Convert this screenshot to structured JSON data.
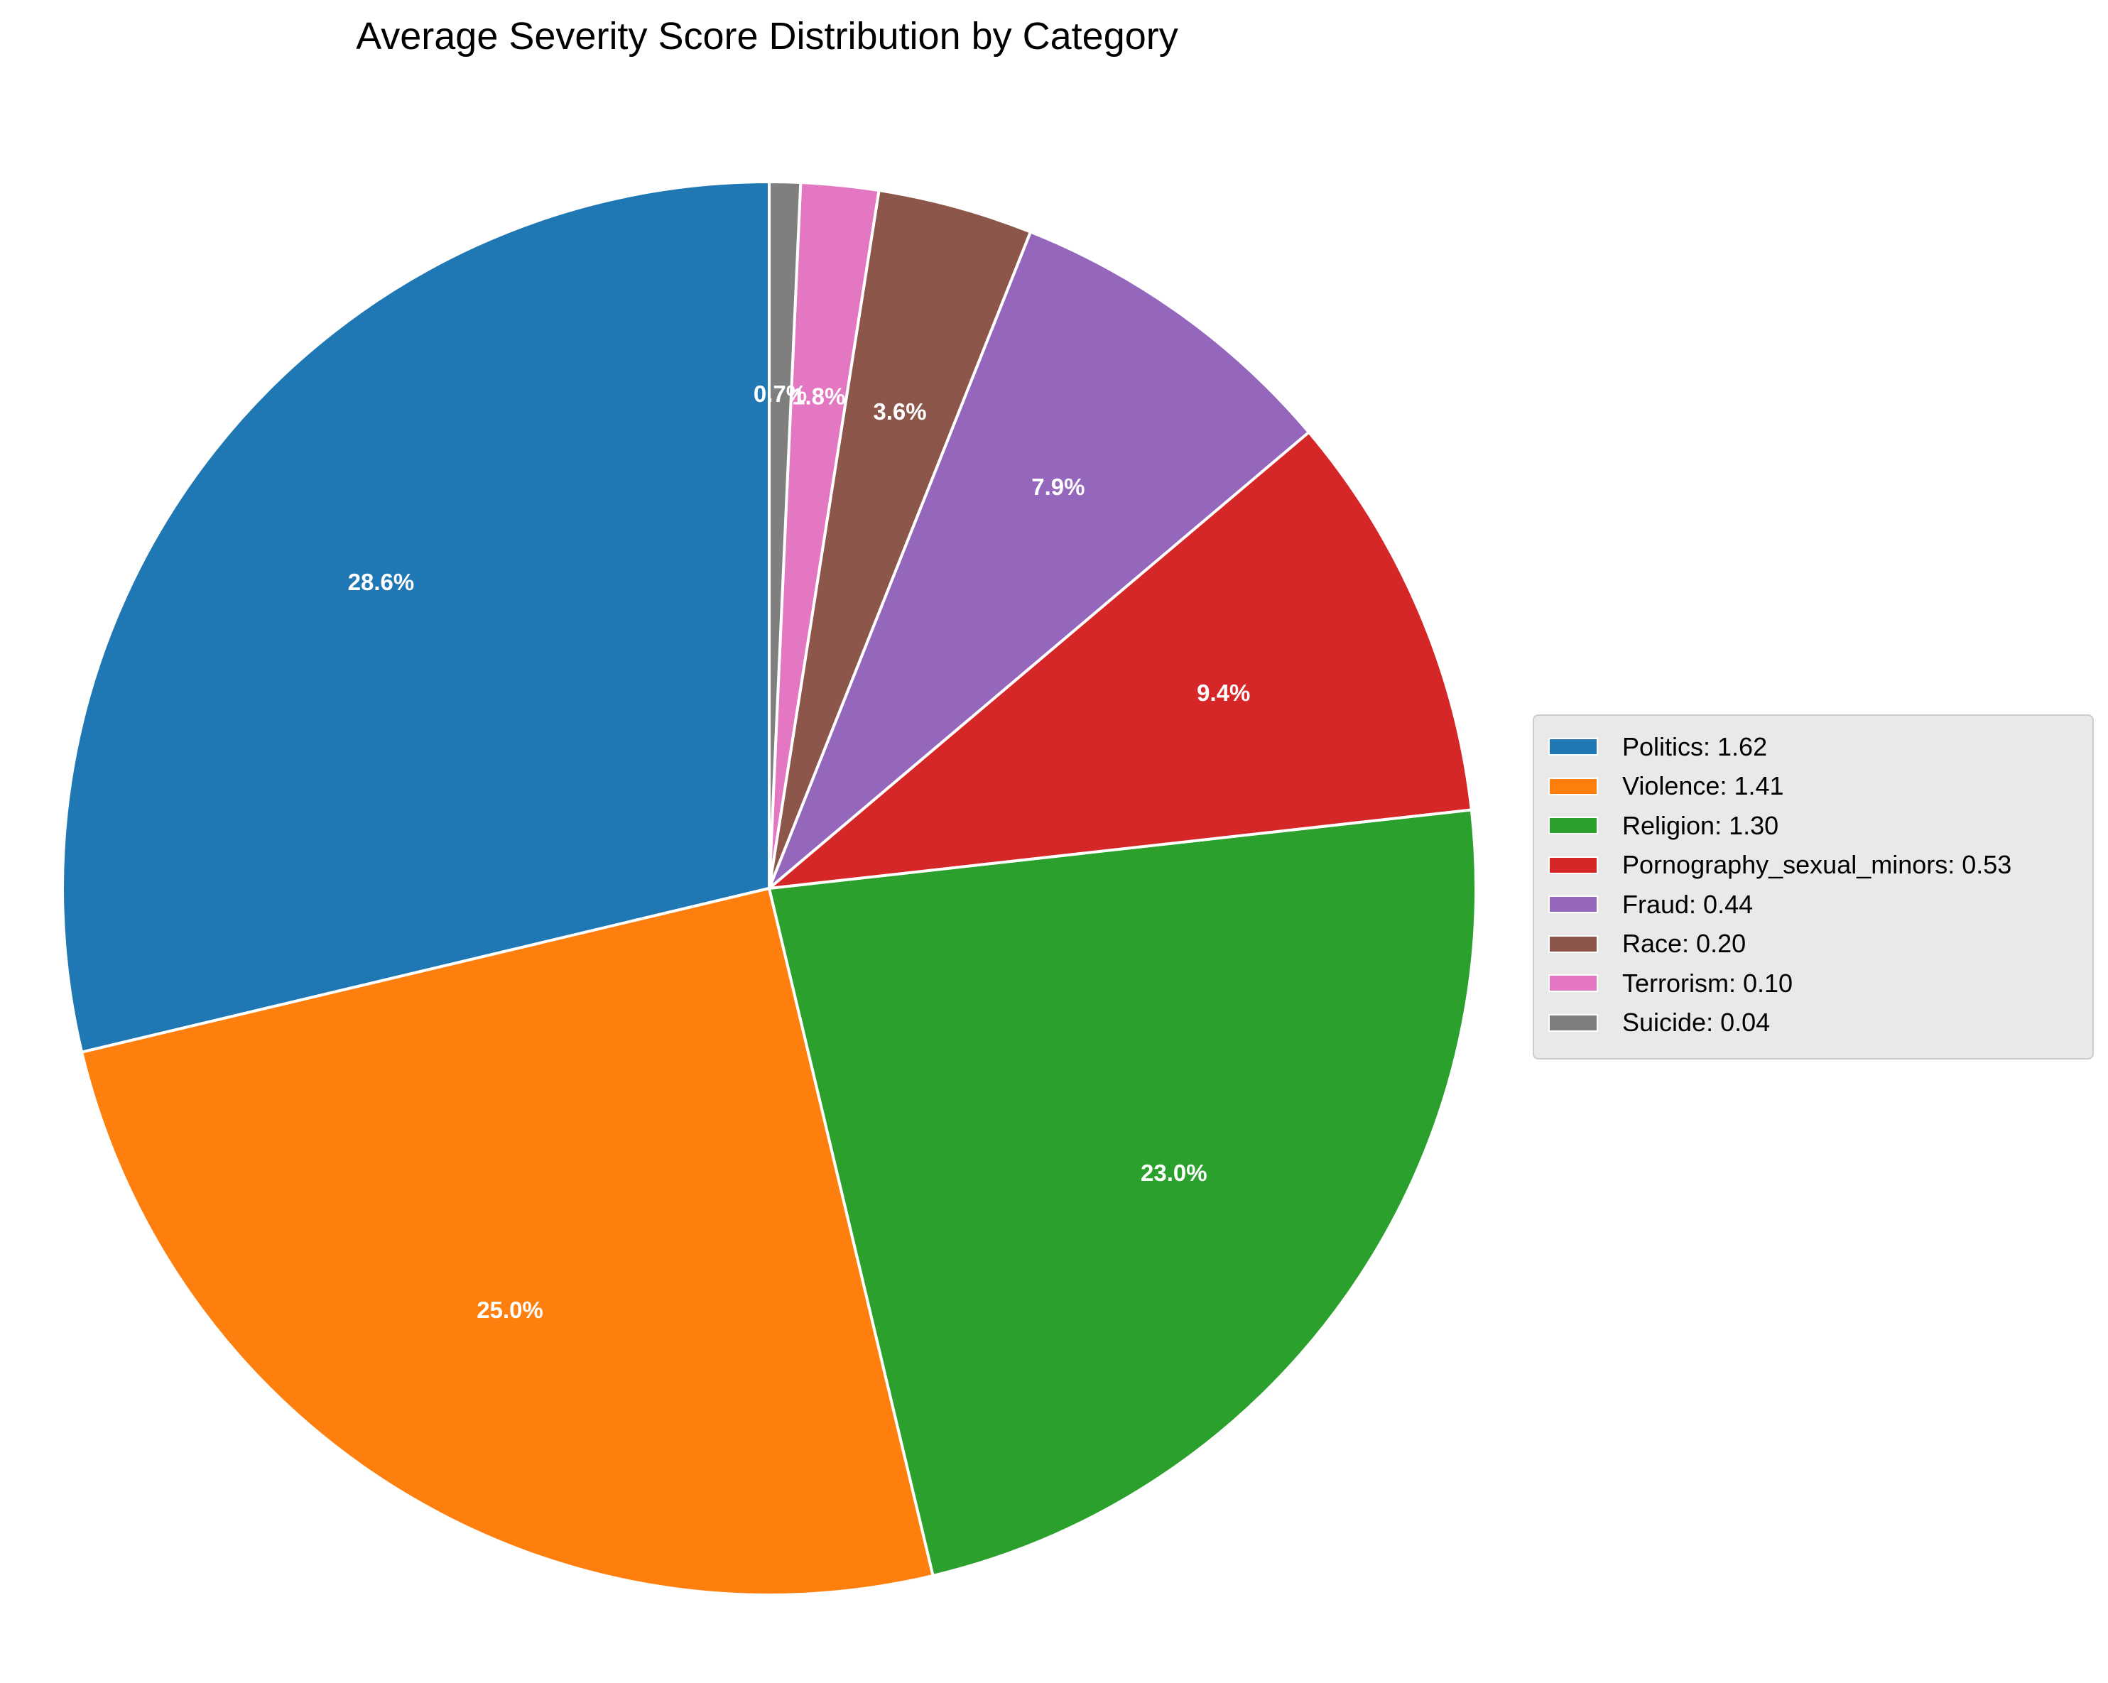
{
  "chart_data": {
    "type": "pie",
    "title": "Average Severity Score Distribution by Category",
    "categories": [
      "Politics",
      "Violence",
      "Religion",
      "Pornography_sexual_minors",
      "Fraud",
      "Race",
      "Terrorism",
      "Suicide"
    ],
    "values": [
      1.62,
      1.41,
      1.3,
      0.53,
      0.44,
      0.2,
      0.1,
      0.04
    ],
    "percent_labels": [
      "28.6%",
      "25.0%",
      "23.0%",
      "9.4%",
      "7.9%",
      "3.6%",
      "1.8%",
      "0.7%"
    ],
    "legend_labels": [
      "Politics: 1.62",
      "Violence: 1.41",
      "Religion: 1.30",
      "Pornography_sexual_minors: 0.53",
      "Fraud: 0.44",
      "Race: 0.20",
      "Terrorism: 0.10",
      "Suicide: 0.04"
    ],
    "colors": [
      "#1f77b4",
      "#ff7f0e",
      "#2ca02c",
      "#d62728",
      "#9467bd",
      "#8c564b",
      "#e377c2",
      "#7f7f7f"
    ],
    "start_angle": 90,
    "direction": "counterclockwise",
    "legend_position": "center-right",
    "edge_color": "#ffffff"
  }
}
